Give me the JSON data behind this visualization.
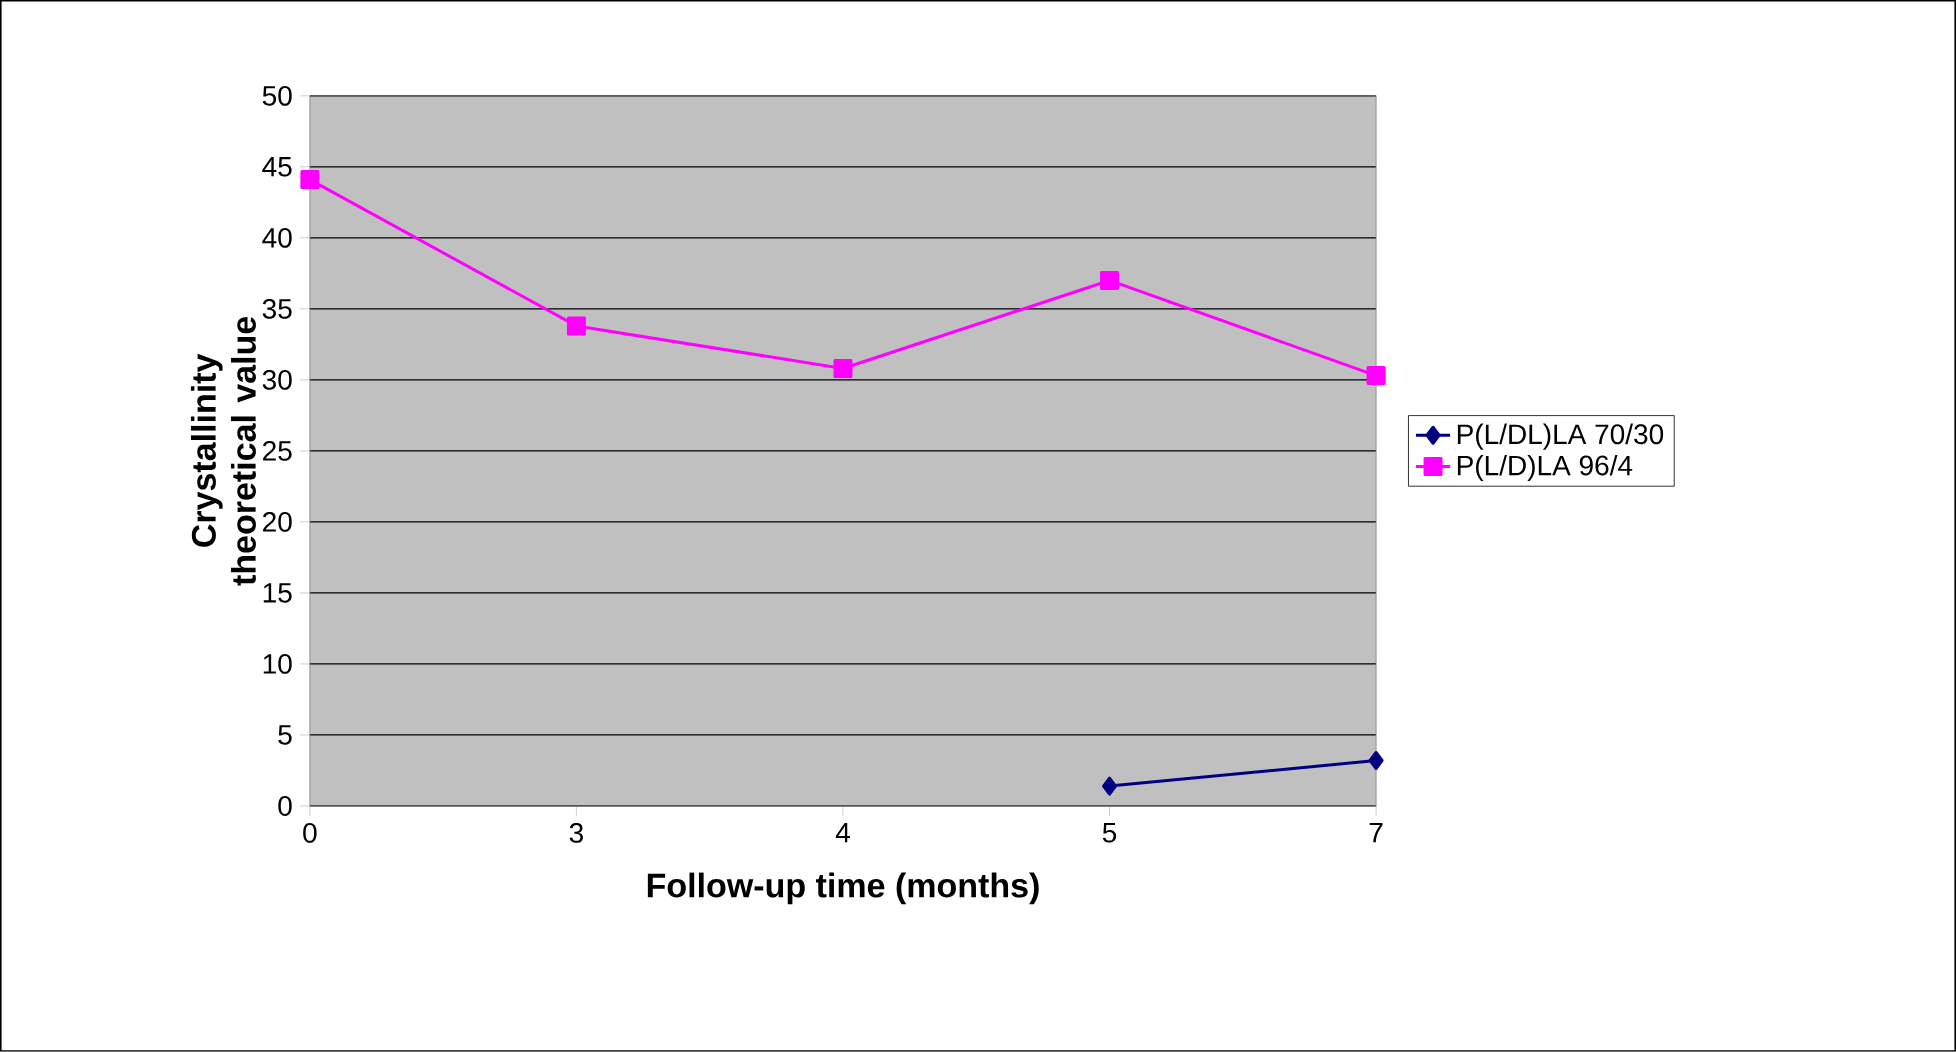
{
  "chart_data": {
    "type": "line",
    "xlabel": "Follow-up time (months)",
    "ylabel": "Crystallinity theoretical value",
    "categories": [
      "0",
      "3",
      "4",
      "5",
      "7"
    ],
    "series": [
      {
        "name": "P(L/DL)LA 70/30",
        "color": "#000080",
        "marker": "diamond",
        "values": [
          null,
          null,
          null,
          1.4,
          3.2
        ]
      },
      {
        "name": "P(L/D)LA 96/4",
        "color": "#ff00ff",
        "marker": "square",
        "values": [
          44.1,
          33.8,
          30.8,
          37.0,
          30.3
        ]
      }
    ],
    "ylim": [
      0,
      50
    ],
    "yticks": [
      0,
      5,
      10,
      15,
      20,
      25,
      30,
      35,
      40,
      45,
      50
    ],
    "grid": "y",
    "legend": "right"
  }
}
